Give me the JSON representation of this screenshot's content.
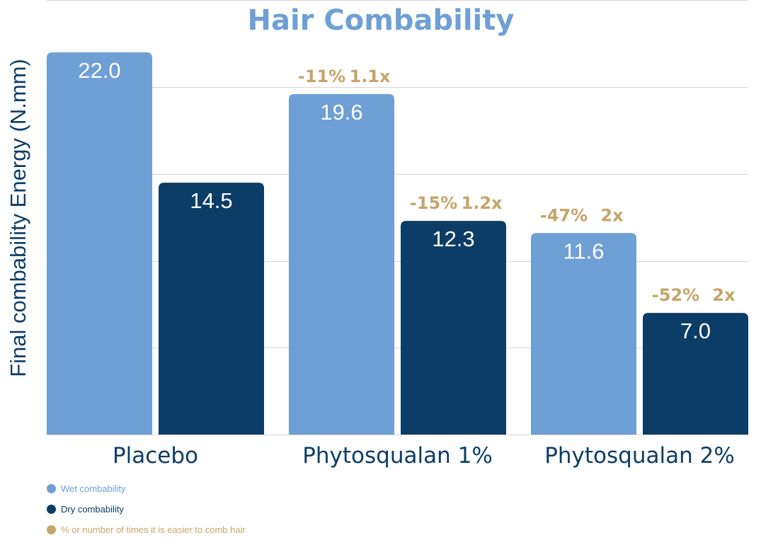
{
  "chart_data": {
    "type": "bar",
    "title": "Hair Combability",
    "ylabel": "Final combability Energy (N.mm)",
    "xlabel": "",
    "categories": [
      "Placebo",
      "Phytosqualan 1%",
      "Phytosqualan 2%"
    ],
    "ylim": [
      0,
      22
    ],
    "grid": true,
    "series": [
      {
        "name": "Wet combability",
        "values": [
          22.0,
          19.6,
          11.6
        ],
        "labels": [
          "22.0",
          "19.6",
          "11.6"
        ],
        "color": "#6e9fd5"
      },
      {
        "name": "Dry combability",
        "values": [
          14.5,
          12.3,
          7.0
        ],
        "labels": [
          "14.5",
          "12.3",
          "7.0"
        ],
        "color": "#0c3d66"
      }
    ],
    "annotations": [
      null,
      null,
      {
        "series": 0,
        "category": 1,
        "texts": [
          "-11%",
          "1.1x"
        ]
      },
      {
        "series": 1,
        "category": 1,
        "texts": [
          "-15%",
          "1.2x"
        ]
      },
      {
        "series": 0,
        "category": 2,
        "texts": [
          "-47%",
          "2x"
        ]
      },
      {
        "series": 1,
        "category": 2,
        "texts": [
          "-52%",
          "2x"
        ]
      }
    ],
    "legend": {
      "placement": "bottom-left",
      "items": [
        {
          "label": "Wet combability",
          "color": "#6e9fd5"
        },
        {
          "label": "Dry combability",
          "color": "#0c3d66"
        },
        {
          "label": "% or number of times it is easier to comb hair",
          "color": "#c5a56a"
        }
      ]
    },
    "colors": {
      "title": "#6e9fd5",
      "axis_label": "#0c3d66",
      "category_label": "#0c3d66",
      "annotation": "#c5a56a",
      "grid": "#d6d6d6",
      "value_label": "#ffffff"
    }
  }
}
